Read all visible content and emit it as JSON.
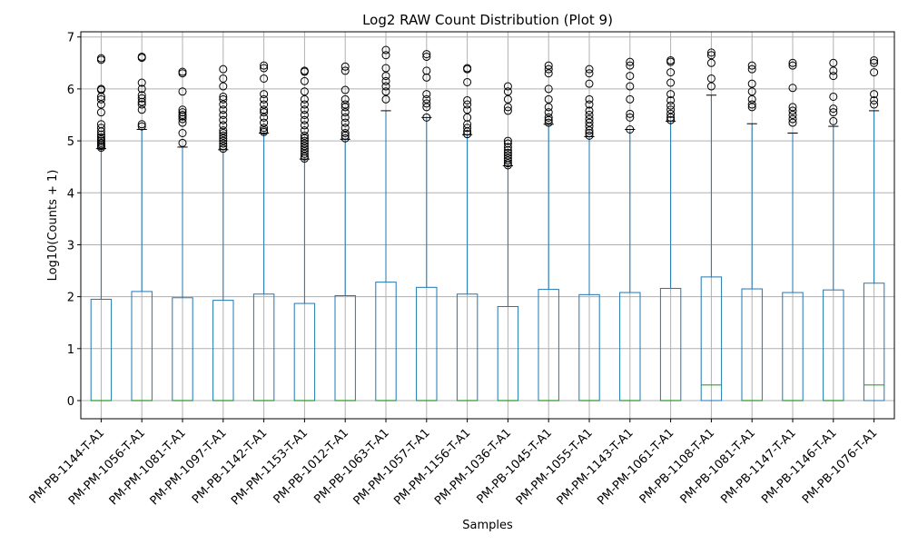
{
  "chart_data": {
    "type": "box",
    "title": "Log2 RAW Count Distribution (Plot 9)",
    "xlabel": "Samples",
    "ylabel": "Log10(Counts + 1)",
    "ylim": [
      -0.35,
      7.1
    ],
    "yticks": [
      0,
      1,
      2,
      3,
      4,
      5,
      6,
      7
    ],
    "grid": true,
    "colors": {
      "box": "#1f77b4",
      "median": "#2ca02c",
      "whisker_cap": "#000000",
      "grid": "#b0b0b0"
    },
    "series": [
      {
        "name": "PM-PB-1144-T-A1",
        "min": 0,
        "q1": 0,
        "median": 0,
        "q3": 1.95,
        "whisker_high": 4.85,
        "outliers": [
          4.87,
          4.9,
          4.93,
          4.96,
          5.0,
          5.03,
          5.07,
          5.12,
          5.18,
          5.25,
          5.32,
          5.55,
          5.7,
          5.8,
          5.85,
          5.98,
          6.0,
          6.56,
          6.59
        ]
      },
      {
        "name": "PM-PM-1056-T-A1",
        "min": 0,
        "q1": 0,
        "median": 0,
        "q3": 2.1,
        "whisker_high": 5.22,
        "outliers": [
          5.28,
          5.32,
          5.6,
          5.7,
          5.75,
          5.82,
          5.88,
          6.0,
          6.12,
          6.6,
          6.62
        ]
      },
      {
        "name": "PM-PM-1081-T-A1",
        "min": 0,
        "q1": 0,
        "median": 0,
        "q3": 1.98,
        "whisker_high": 4.88,
        "outliers": [
          4.96,
          5.15,
          5.35,
          5.42,
          5.47,
          5.5,
          5.55,
          5.6,
          5.95,
          6.3,
          6.33
        ]
      },
      {
        "name": "PM-PM-1097-T-A1",
        "min": 0,
        "q1": 0,
        "median": 0,
        "q3": 1.93,
        "whisker_high": 4.83,
        "outliers": [
          4.85,
          4.9,
          4.95,
          5.0,
          5.05,
          5.1,
          5.15,
          5.2,
          5.3,
          5.4,
          5.5,
          5.6,
          5.7,
          5.8,
          5.85,
          6.05,
          6.2,
          6.38
        ]
      },
      {
        "name": "PM-PB-1142-T-A1",
        "min": 0,
        "q1": 0,
        "median": 0,
        "q3": 2.05,
        "whisker_high": 5.15,
        "outliers": [
          5.17,
          5.2,
          5.25,
          5.35,
          5.45,
          5.55,
          5.6,
          5.7,
          5.8,
          5.9,
          6.2,
          6.4,
          6.45
        ]
      },
      {
        "name": "PM-PM-1153-T-A1",
        "min": 0,
        "q1": 0,
        "median": 0,
        "q3": 1.87,
        "whisker_high": 4.65,
        "outliers": [
          4.66,
          4.7,
          4.75,
          4.8,
          4.85,
          4.9,
          4.95,
          5.0,
          5.05,
          5.1,
          5.2,
          5.3,
          5.4,
          5.5,
          5.6,
          5.7,
          5.8,
          5.95,
          6.15,
          6.33,
          6.35
        ]
      },
      {
        "name": "PM-PB-1012-T-A1",
        "min": 0,
        "q1": 0,
        "median": 0,
        "q3": 2.02,
        "whisker_high": 5.03,
        "outliers": [
          5.05,
          5.1,
          5.15,
          5.25,
          5.35,
          5.45,
          5.55,
          5.65,
          5.7,
          5.8,
          5.98,
          6.35,
          6.43
        ]
      },
      {
        "name": "PM-PB-1063-T-A1",
        "min": 0,
        "q1": 0,
        "median": 0,
        "q3": 2.28,
        "whisker_high": 5.58,
        "outliers": [
          5.8,
          5.95,
          6.05,
          6.15,
          6.25,
          6.4,
          6.65,
          6.75
        ]
      },
      {
        "name": "PM-PM-1057-T-A1",
        "min": 0,
        "q1": 0,
        "median": 0,
        "q3": 2.18,
        "whisker_high": 5.45,
        "outliers": [
          5.45,
          5.65,
          5.72,
          5.8,
          5.9,
          6.22,
          6.35,
          6.62,
          6.67
        ]
      },
      {
        "name": "PM-PM-1156-T-A1",
        "min": 0,
        "q1": 0,
        "median": 0,
        "q3": 2.05,
        "whisker_high": 5.12,
        "outliers": [
          5.13,
          5.18,
          5.25,
          5.32,
          5.45,
          5.6,
          5.7,
          5.78,
          6.13,
          6.38,
          6.4
        ]
      },
      {
        "name": "PM-PM-1036-T-A1",
        "min": 0,
        "q1": 0,
        "median": 0,
        "q3": 1.81,
        "whisker_high": 4.52,
        "outliers": [
          4.53,
          4.57,
          4.62,
          4.67,
          4.72,
          4.77,
          4.82,
          4.88,
          4.95,
          5.0,
          5.58,
          5.65,
          5.8,
          5.95,
          6.05
        ]
      },
      {
        "name": "PM-PB-1045-T-A1",
        "min": 0,
        "q1": 0,
        "median": 0,
        "q3": 2.14,
        "whisker_high": 5.32,
        "outliers": [
          5.35,
          5.4,
          5.45,
          5.55,
          5.65,
          5.8,
          6.0,
          6.3,
          6.38,
          6.45
        ]
      },
      {
        "name": "PM-PM-1055-T-A1",
        "min": 0,
        "q1": 0,
        "median": 0,
        "q3": 2.04,
        "whisker_high": 5.08,
        "outliers": [
          5.1,
          5.15,
          5.2,
          5.28,
          5.35,
          5.42,
          5.5,
          5.58,
          5.7,
          5.8,
          6.1,
          6.3,
          6.38
        ]
      },
      {
        "name": "PM-PM-1143-T-A1",
        "min": 0,
        "q1": 0,
        "median": 0,
        "q3": 2.08,
        "whisker_high": 5.22,
        "outliers": [
          5.22,
          5.45,
          5.52,
          5.8,
          6.05,
          6.25,
          6.45,
          6.52
        ]
      },
      {
        "name": "PM-PM-1061-T-A1",
        "min": 0,
        "q1": 0,
        "median": 0,
        "q3": 2.16,
        "whisker_high": 5.38,
        "outliers": [
          5.4,
          5.45,
          5.52,
          5.6,
          5.68,
          5.78,
          5.9,
          6.12,
          6.32,
          6.52,
          6.55
        ]
      },
      {
        "name": "PM-PB-1108-T-A1",
        "min": 0,
        "q1": 0,
        "median": 0.3,
        "q3": 2.38,
        "whisker_high": 5.88,
        "outliers": [
          6.05,
          6.2,
          6.5,
          6.65,
          6.7
        ]
      },
      {
        "name": "PM-PB-1081-T-A1",
        "min": 0,
        "q1": 0,
        "median": 0,
        "q3": 2.15,
        "whisker_high": 5.33,
        "outliers": [
          5.65,
          5.7,
          5.8,
          5.95,
          6.1,
          6.38,
          6.45
        ]
      },
      {
        "name": "PM-PB-1147-T-A1",
        "min": 0,
        "q1": 0,
        "median": 0,
        "q3": 2.08,
        "whisker_high": 5.15,
        "outliers": [
          5.35,
          5.42,
          5.5,
          5.58,
          5.65,
          6.02,
          6.45,
          6.5
        ]
      },
      {
        "name": "PM-PB-1146-T-A1",
        "min": 0,
        "q1": 0,
        "median": 0,
        "q3": 2.13,
        "whisker_high": 5.28,
        "outliers": [
          5.38,
          5.55,
          5.62,
          5.85,
          6.25,
          6.35,
          6.5
        ]
      },
      {
        "name": "PM-PB-1076-T-A1",
        "min": 0,
        "q1": 0,
        "median": 0.3,
        "q3": 2.26,
        "whisker_high": 5.58,
        "outliers": [
          5.7,
          5.78,
          5.9,
          6.32,
          6.5,
          6.55
        ]
      }
    ]
  }
}
